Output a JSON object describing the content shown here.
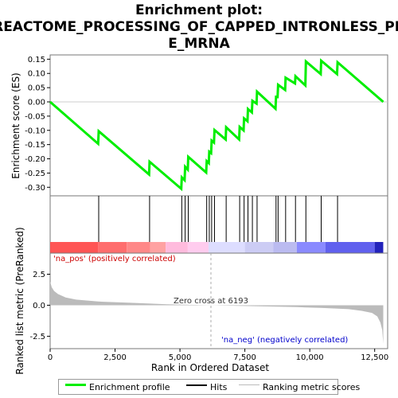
{
  "chart_data": {
    "type": "line",
    "title_line1": "Enrichment plot:",
    "title_line2": "REACTOME_PROCESSING_OF_CAPPED_INTRONLESS_PR",
    "title_line3": "E_MRNA",
    "es_panel": {
      "ylabel": "Enrichment score (ES)",
      "ylim": [
        -0.33,
        0.165
      ],
      "yticks": [
        0.15,
        0.1,
        0.05,
        0.0,
        -0.05,
        -0.1,
        -0.15,
        -0.2,
        -0.25,
        -0.3
      ],
      "ytick_labels": [
        "0.15",
        "0.10",
        "0.05",
        "0.00",
        "-0.05",
        "-0.10",
        "-0.15",
        "-0.20",
        "-0.25",
        "-0.30"
      ],
      "curve_color": "#00ee00",
      "curve": [
        [
          0,
          0.0
        ],
        [
          1850,
          -0.147
        ],
        [
          1870,
          -0.103
        ],
        [
          3810,
          -0.255
        ],
        [
          3830,
          -0.21
        ],
        [
          5050,
          -0.305
        ],
        [
          5070,
          -0.265
        ],
        [
          5180,
          -0.275
        ],
        [
          5200,
          -0.228
        ],
        [
          5300,
          -0.238
        ],
        [
          5320,
          -0.193
        ],
        [
          6010,
          -0.248
        ],
        [
          6030,
          -0.208
        ],
        [
          6110,
          -0.215
        ],
        [
          6130,
          -0.175
        ],
        [
          6200,
          -0.18
        ],
        [
          6220,
          -0.136
        ],
        [
          6310,
          -0.143
        ],
        [
          6330,
          -0.099
        ],
        [
          6760,
          -0.132
        ],
        [
          6780,
          -0.089
        ],
        [
          7280,
          -0.132
        ],
        [
          7300,
          -0.088
        ],
        [
          7450,
          -0.1
        ],
        [
          7470,
          -0.058
        ],
        [
          7600,
          -0.068
        ],
        [
          7620,
          -0.025
        ],
        [
          7770,
          -0.037
        ],
        [
          7790,
          0.004
        ],
        [
          7950,
          -0.006
        ],
        [
          7970,
          0.036
        ],
        [
          8680,
          -0.024
        ],
        [
          8700,
          0.018
        ],
        [
          8760,
          0.017
        ],
        [
          8780,
          0.06
        ],
        [
          9050,
          0.042
        ],
        [
          9070,
          0.085
        ],
        [
          9430,
          0.065
        ],
        [
          9450,
          0.09
        ],
        [
          9830,
          0.058
        ],
        [
          9850,
          0.142
        ],
        [
          10420,
          0.098
        ],
        [
          10440,
          0.145
        ],
        [
          11050,
          0.098
        ],
        [
          11070,
          0.139
        ],
        [
          12830,
          0.0
        ]
      ]
    },
    "hits": [
      1870,
      3830,
      5070,
      5200,
      5320,
      6030,
      6130,
      6220,
      6330,
      6780,
      7300,
      7470,
      7620,
      7790,
      7970,
      8700,
      8780,
      9070,
      9450,
      9850,
      10440,
      11070
    ],
    "color_band": [
      {
        "from": 0,
        "to": 1850,
        "color": "#ff5555"
      },
      {
        "from": 1850,
        "to": 2950,
        "color": "#ff6d6d"
      },
      {
        "from": 2950,
        "to": 3850,
        "color": "#ff8888"
      },
      {
        "from": 3850,
        "to": 4450,
        "color": "#ffa2a2"
      },
      {
        "from": 4450,
        "to": 5300,
        "color": "#ffbbdd"
      },
      {
        "from": 5300,
        "to": 6100,
        "color": "#ffccee"
      },
      {
        "from": 6100,
        "to": 7500,
        "color": "#ddddff"
      },
      {
        "from": 7500,
        "to": 8600,
        "color": "#ccccf4"
      },
      {
        "from": 8600,
        "to": 9500,
        "color": "#bbbbf0"
      },
      {
        "from": 9500,
        "to": 10600,
        "color": "#8a8aff"
      },
      {
        "from": 10600,
        "to": 12500,
        "color": "#6060ee"
      },
      {
        "from": 12500,
        "to": 12830,
        "color": "#2222bb"
      }
    ],
    "metric_panel": {
      "ylabel": "Ranked list metric (PreRanked)",
      "ylim": [
        -3.5,
        4.2
      ],
      "yticks": [
        2.5,
        0.0,
        -2.5
      ],
      "ytick_labels": [
        "2.5",
        "0.0",
        "-2.5"
      ],
      "metric": [
        [
          0,
          1.9
        ],
        [
          60,
          1.45
        ],
        [
          150,
          1.15
        ],
        [
          300,
          0.9
        ],
        [
          600,
          0.62
        ],
        [
          1000,
          0.45
        ],
        [
          1850,
          0.3
        ],
        [
          3000,
          0.2
        ],
        [
          4500,
          0.08
        ],
        [
          6193,
          0.0
        ],
        [
          8000,
          -0.08
        ],
        [
          9500,
          -0.15
        ],
        [
          10500,
          -0.22
        ],
        [
          11500,
          -0.32
        ],
        [
          12000,
          -0.45
        ],
        [
          12400,
          -0.62
        ],
        [
          12600,
          -0.9
        ],
        [
          12720,
          -1.4
        ],
        [
          12790,
          -2.0
        ],
        [
          12830,
          -3.1
        ]
      ],
      "pos_label": "'na_pos' (positively correlated)",
      "neg_label": "'na_neg' (negatively correlated)",
      "zero_cross": "Zero cross at 6193",
      "zero_cross_rank": 6193
    },
    "xlabel": "Rank in Ordered Dataset",
    "xlim": [
      0,
      13000
    ],
    "xticks": [
      0,
      2500,
      5000,
      7500,
      10000,
      12500
    ],
    "xtick_labels": [
      "0",
      "2,500",
      "5,000",
      "7,500",
      "10,000",
      "12,500"
    ],
    "legend": {
      "enrichment": "Enrichment profile",
      "hits": "Hits",
      "ranking": "Ranking metric scores"
    }
  }
}
